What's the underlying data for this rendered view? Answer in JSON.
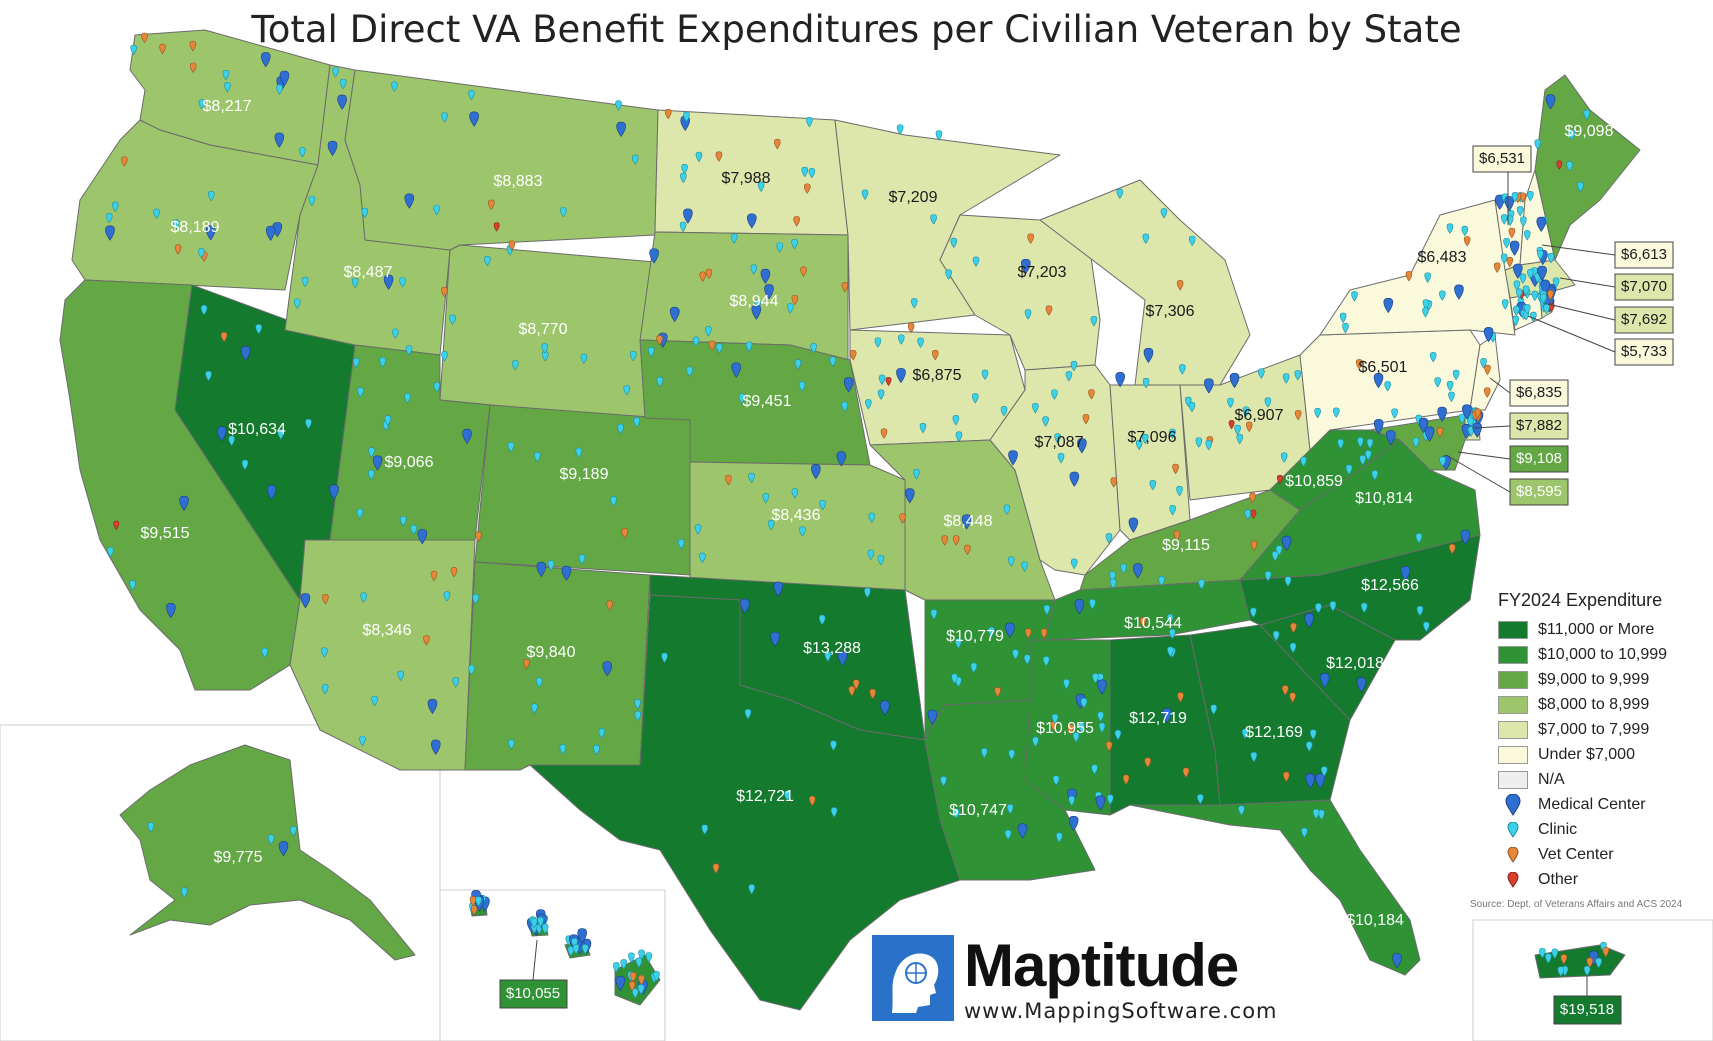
{
  "title": "Total Direct VA Benefit Expenditures per Civilian Veteran by State",
  "colors": {
    "c11000": "#137a2e",
    "c10000": "#2f9235",
    "c9000": "#63a845",
    "c8000": "#9dc56b",
    "c7000": "#dde6ab",
    "under7000": "#fbf9dc",
    "na": "#eeeeee",
    "medical": "#2f6fd1",
    "clinic": "#3cd1e8",
    "vet": "#e5873a",
    "other": "#d8402c"
  },
  "states": {
    "WA": "$8,217",
    "OR": "$8,189",
    "CA": "$9,515",
    "NV": "$10,634",
    "ID": "$8,487",
    "MT": "$8,883",
    "WY": "$8,770",
    "UT": "$9,066",
    "AZ": "$8,346",
    "CO": "$9,189",
    "NM": "$9,840",
    "ND": "$7,988",
    "SD": "$8,944",
    "NE": "$9,451",
    "KS": "$8,436",
    "OK": "$13,288",
    "TX": "$12,721",
    "MN": "$7,209",
    "IA": "$6,875",
    "MO": "$8,448",
    "AR": "$10,779",
    "LA": "$10,747",
    "WI": "$7,203",
    "IL": "$7,087",
    "MI": "$7,306",
    "IN": "$7,096",
    "OH": "$6,907",
    "KY": "$9,115",
    "TN": "$10,544",
    "MS": "$10,955",
    "AL": "$12,719",
    "GA": "$12,169",
    "FL": "$10,184",
    "SC": "$12,018",
    "NC": "$12,566",
    "VA": "$10,814",
    "WV": "$10,859",
    "PA": "$6,501",
    "NY": "$6,483",
    "ME": "$9,098",
    "VT": "$6,531",
    "NH": "$6,613",
    "MA": "$7,070",
    "RI": "$7,692",
    "CT": "$5,733",
    "NJ": "$6,835",
    "DE": "$7,882",
    "MD": "$9,108",
    "DC": "$8,595",
    "AK": "$9,775",
    "HI": "$10,055",
    "PR": "$19,518"
  },
  "legend": {
    "title": "FY2024 Expenditure",
    "items": [
      {
        "label": "$11,000 or More"
      },
      {
        "label": "$10,000 to 10,999"
      },
      {
        "label": "$9,000 to 9,999"
      },
      {
        "label": "$8,000 to 8,999"
      },
      {
        "label": "$7,000 to 7,999"
      },
      {
        "label": "Under $7,000"
      },
      {
        "label": "N/A"
      }
    ],
    "symbols": [
      {
        "label": "Medical Center"
      },
      {
        "label": "Clinic"
      },
      {
        "label": "Vet Center"
      },
      {
        "label": "Other"
      }
    ]
  },
  "source": "Source: Dept. of Veterans Affairs and ACS 2024",
  "logo": {
    "name": "Maptitude",
    "url": "www.MappingSoftware.com"
  }
}
